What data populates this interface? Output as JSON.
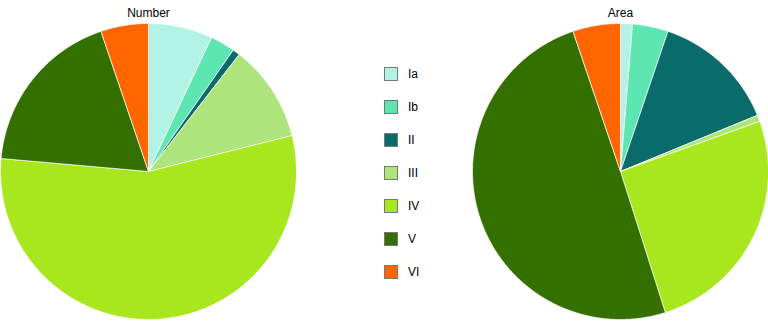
{
  "chart_data": [
    {
      "type": "pie",
      "title": "Number",
      "categories": [
        "Ia",
        "Ib",
        "II",
        "III",
        "IV",
        "V",
        "VI"
      ],
      "values": [
        7,
        2.7,
        0.8,
        10.6,
        55.3,
        18.4,
        5.2
      ],
      "colors": [
        "#b3f3e6",
        "#5ee6b2",
        "#0a6b6b",
        "#ade57c",
        "#a8e61e",
        "#337000",
        "#ff6600"
      ],
      "legend": "center"
    },
    {
      "type": "pie",
      "title": "Area",
      "categories": [
        "Ia",
        "Ib",
        "II",
        "III",
        "IV",
        "V",
        "VI"
      ],
      "values": [
        1.3,
        3.9,
        13.6,
        0.7,
        25.6,
        49.7,
        5.2
      ],
      "colors": [
        "#b3f3e6",
        "#5ee6b2",
        "#0a6b6b",
        "#ade57c",
        "#a8e61e",
        "#337000",
        "#ff6600"
      ],
      "legend": "center"
    }
  ]
}
